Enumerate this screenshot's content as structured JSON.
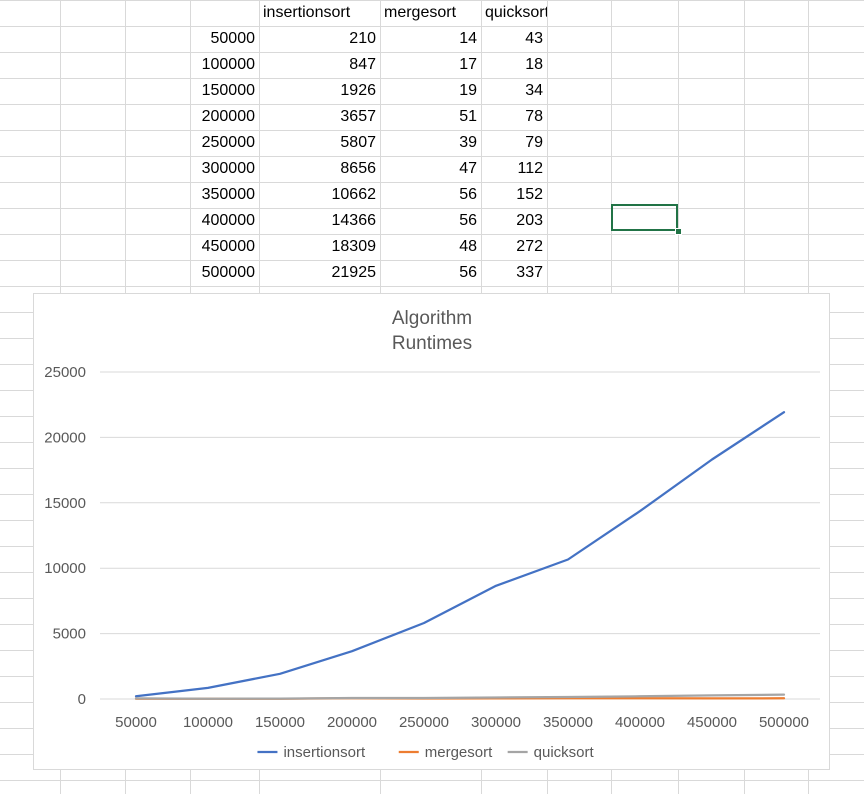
{
  "spreadsheet": {
    "headers": [
      "insertionsort",
      "mergesort",
      "quicksort"
    ],
    "rows": [
      [
        "50000",
        "210",
        "14",
        "43"
      ],
      [
        "100000",
        "847",
        "17",
        "18"
      ],
      [
        "150000",
        "1926",
        "19",
        "34"
      ],
      [
        "200000",
        "3657",
        "51",
        "78"
      ],
      [
        "250000",
        "5807",
        "39",
        "79"
      ],
      [
        "300000",
        "8656",
        "47",
        "112"
      ],
      [
        "350000",
        "10662",
        "56",
        "152"
      ],
      [
        "400000",
        "14366",
        "56",
        "203"
      ],
      [
        "450000",
        "18309",
        "48",
        "272"
      ],
      [
        "500000",
        "21925",
        "56",
        "337"
      ]
    ],
    "selection_border_color": "#217346",
    "gridline_color": "#d9d9d9"
  },
  "chart_data": {
    "type": "line",
    "title": [
      "Algorithm",
      "Runtimes"
    ],
    "categories": [
      "50000",
      "100000",
      "150000",
      "200000",
      "250000",
      "300000",
      "350000",
      "400000",
      "450000",
      "500000"
    ],
    "series": [
      {
        "name": "insertionsort",
        "color": "#4472c4",
        "values": [
          210,
          847,
          1926,
          3657,
          5807,
          8656,
          10662,
          14366,
          18309,
          21925
        ]
      },
      {
        "name": "mergesort",
        "color": "#ed7d31",
        "values": [
          14,
          17,
          19,
          51,
          39,
          47,
          56,
          56,
          48,
          56
        ]
      },
      {
        "name": "quicksort",
        "color": "#a5a5a5",
        "values": [
          43,
          18,
          34,
          78,
          79,
          112,
          152,
          203,
          272,
          337
        ]
      }
    ],
    "yticks": [
      0,
      5000,
      10000,
      15000,
      20000,
      25000
    ],
    "ylim": [
      0,
      25000
    ],
    "grid": true,
    "legend_position": "bottom"
  }
}
